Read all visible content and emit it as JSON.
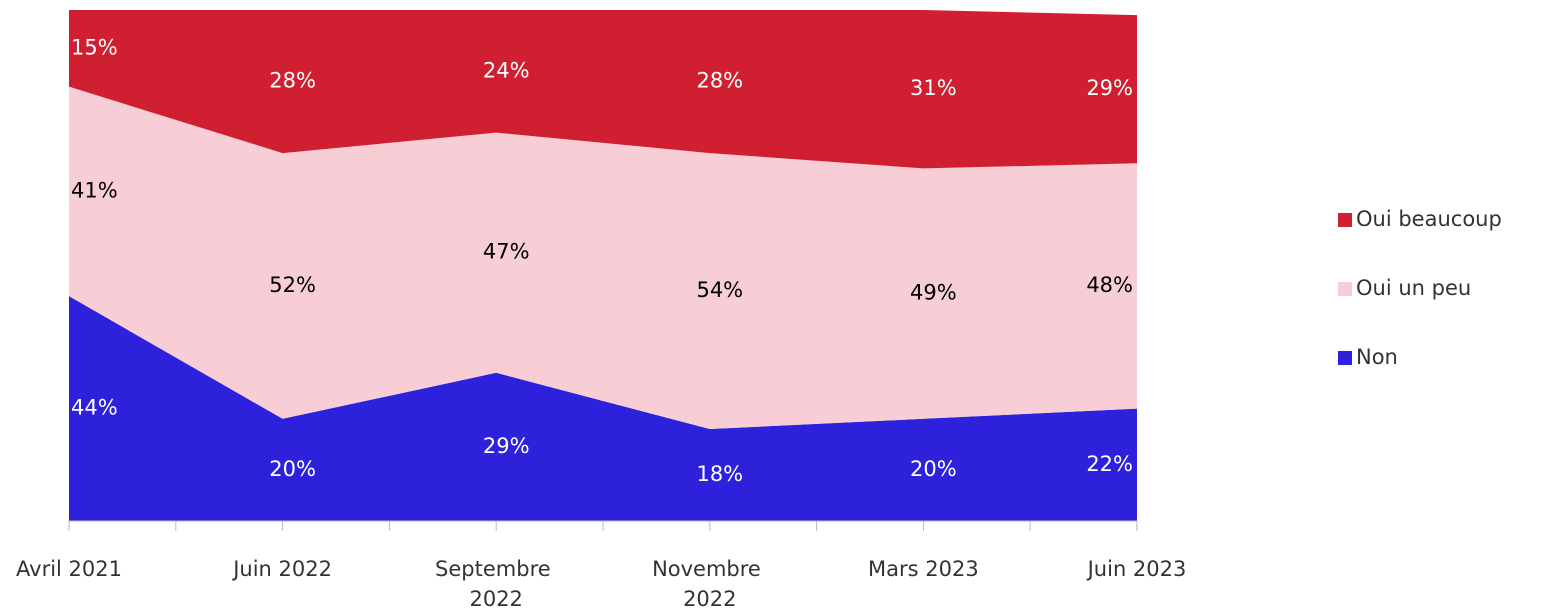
{
  "chart_data": {
    "type": "stacked_area",
    "categories": [
      "Avril 2021",
      "Juin 2022",
      "Septembre 2022",
      "Novembre 2022",
      "Mars 2023",
      "Juin 2023"
    ],
    "series": [
      {
        "name": "Non",
        "color": "#2d21dc",
        "label_color": "#ffffff",
        "values": [
          44,
          20,
          29,
          18,
          20,
          22
        ],
        "value_labels": [
          "44%",
          "20%",
          "29%",
          "18%",
          "20%",
          "22%"
        ]
      },
      {
        "name": "Oui un peu",
        "color": "#f7cdd6",
        "label_color": "#000000",
        "values": [
          41,
          52,
          47,
          54,
          49,
          48
        ],
        "value_labels": [
          "41%",
          "52%",
          "47%",
          "54%",
          "49%",
          "48%"
        ]
      },
      {
        "name": "Oui beaucoup",
        "color": "#d01f30",
        "label_color": "#ffffff",
        "values": [
          15,
          28,
          24,
          28,
          31,
          29
        ],
        "value_labels": [
          "15%",
          "28%",
          "24%",
          "28%",
          "31%",
          "29%"
        ]
      }
    ],
    "ylim": [
      0,
      100
    ]
  }
}
